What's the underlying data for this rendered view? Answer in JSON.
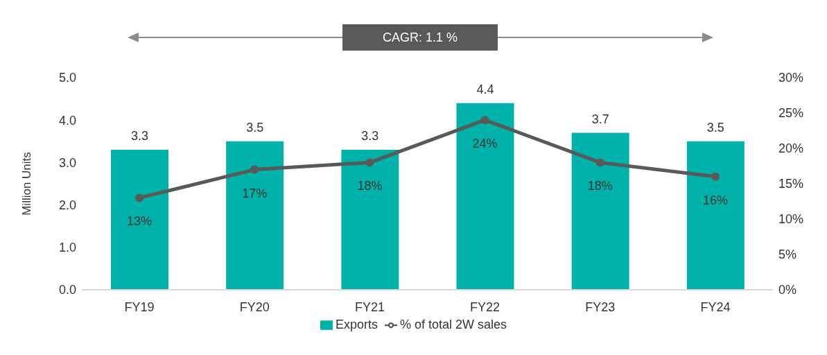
{
  "chart_data": {
    "type": "bar",
    "categories": [
      "FY19",
      "FY20",
      "FY21",
      "FY22",
      "FY23",
      "FY24"
    ],
    "ylabel": "Million Units",
    "ylim": [
      0,
      5
    ],
    "yticks": [
      {
        "value": 0,
        "label": "0.0"
      },
      {
        "value": 1,
        "label": "1.0"
      },
      {
        "value": 2,
        "label": "2.0"
      },
      {
        "value": 3,
        "label": "3.0"
      },
      {
        "value": 4,
        "label": "4.0"
      },
      {
        "value": 5,
        "label": "5.0"
      }
    ],
    "y2lim": [
      0,
      30
    ],
    "y2ticks": [
      {
        "value": 0,
        "label": "0%"
      },
      {
        "value": 5,
        "label": "5%"
      },
      {
        "value": 10,
        "label": "10%"
      },
      {
        "value": 15,
        "label": "15%"
      },
      {
        "value": 20,
        "label": "20%"
      },
      {
        "value": 25,
        "label": "25%"
      },
      {
        "value": 30,
        "label": "30%"
      }
    ],
    "series": [
      {
        "name": "Exports",
        "color": "#00b2a9",
        "values": [
          3.3,
          3.5,
          3.3,
          4.4,
          3.7,
          3.5
        ],
        "value_labels": [
          "3.3",
          "3.5",
          "3.3",
          "4.4",
          "3.7",
          "3.5"
        ]
      },
      {
        "name": "% of total 2W sales",
        "type": "line",
        "axis": "y2",
        "color": "#595959",
        "marker": "circle",
        "values": [
          13,
          17,
          18,
          24,
          18,
          16
        ],
        "value_labels": [
          "13%",
          "17%",
          "18%",
          "24%",
          "18%",
          "16%"
        ]
      }
    ],
    "annotations": [
      "CAGR: 1.1 %"
    ],
    "legend": "bottom",
    "grid": false
  }
}
